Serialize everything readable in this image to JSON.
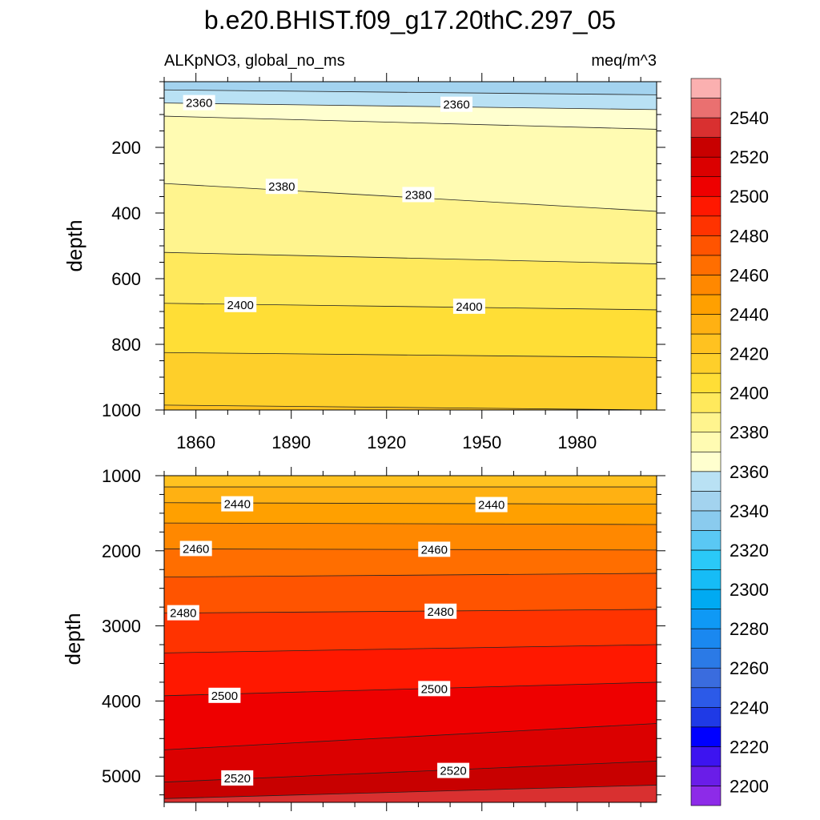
{
  "chart_data": {
    "type": "heatmap",
    "title": "b.e20.BHIST.f09_g17.20thC.297_05",
    "variable_label": "ALKpNO3, global_no_ms",
    "units_label": "meq/m^3",
    "ylabel": "depth",
    "x_range": [
      1850,
      2005
    ],
    "x_ticks": [
      1860,
      1890,
      1920,
      1950,
      1980
    ],
    "x_tick_labels": [
      "1860",
      "1890",
      "1920",
      "1950",
      "1980"
    ],
    "colorbar": {
      "levels": [
        2200,
        2210,
        2220,
        2230,
        2240,
        2250,
        2260,
        2270,
        2280,
        2290,
        2300,
        2310,
        2320,
        2330,
        2340,
        2350,
        2360,
        2370,
        2380,
        2390,
        2400,
        2410,
        2420,
        2430,
        2440,
        2450,
        2460,
        2470,
        2480,
        2490,
        2500,
        2510,
        2520,
        2530,
        2540,
        2550
      ],
      "label_values": [
        "2200",
        "2220",
        "2240",
        "2260",
        "2280",
        "2300",
        "2320",
        "2340",
        "2360",
        "2380",
        "2400",
        "2420",
        "2440",
        "2460",
        "2480",
        "2500",
        "2520",
        "2540"
      ],
      "colors": [
        "#8d2be8",
        "#6a1de8",
        "#3d14f0",
        "#0000ff",
        "#1f3ae6",
        "#2c5ae8",
        "#3a6cde",
        "#2b7ae6",
        "#1a88f0",
        "#0f99f5",
        "#00aaf2",
        "#16bcf6",
        "#2ac9f8",
        "#5ac8f4",
        "#8acbee",
        "#a3d3ef",
        "#b9e1f4",
        "#ffffcf",
        "#fffbb2",
        "#fff48e",
        "#ffe95c",
        "#ffde36",
        "#fecf2a",
        "#ffc220",
        "#ffb112",
        "#ffa000",
        "#ff8800",
        "#ff6e00",
        "#ff5400",
        "#ff3300",
        "#ff1800",
        "#ee0000",
        "#db0000",
        "#c80000",
        "#d93030",
        "#ea7070",
        "#fbb0b0"
      ]
    },
    "panels": [
      {
        "name": "upper",
        "ylim": [
          0,
          1000
        ],
        "y_ticks": [
          200,
          400,
          600,
          800,
          1000
        ],
        "y_tick_labels": [
          "200",
          "400",
          "600",
          "800",
          "1000"
        ],
        "contours": [
          {
            "level": 2350,
            "depth_start": 25,
            "depth_end": 40
          },
          {
            "level": 2360,
            "depth_start": 65,
            "depth_end": 85
          },
          {
            "level": 2370,
            "depth_start": 105,
            "depth_end": 145
          },
          {
            "level": 2380,
            "depth_start": 310,
            "depth_end": 395
          },
          {
            "level": 2390,
            "depth_start": 520,
            "depth_end": 555
          },
          {
            "level": 2400,
            "depth_start": 675,
            "depth_end": 695
          },
          {
            "level": 2410,
            "depth_start": 825,
            "depth_end": 840
          },
          {
            "level": 2420,
            "depth_start": 985,
            "depth_end": 1000
          }
        ],
        "contour_labels": [
          {
            "text": "2360",
            "x": 1861,
            "depth": 65
          },
          {
            "text": "2360",
            "x": 1942,
            "depth": 70
          },
          {
            "text": "2380",
            "x": 1887,
            "depth": 320
          },
          {
            "text": "2380",
            "x": 1930,
            "depth": 345
          },
          {
            "text": "2400",
            "x": 1874,
            "depth": 680
          },
          {
            "text": "2400",
            "x": 1946,
            "depth": 685
          }
        ]
      },
      {
        "name": "lower",
        "ylim": [
          1000,
          5350
        ],
        "y_ticks": [
          1000,
          2000,
          3000,
          4000,
          5000
        ],
        "y_tick_labels": [
          "1000",
          "2000",
          "3000",
          "4000",
          "5000"
        ],
        "contours": [
          {
            "level": 2430,
            "depth_start": 1150,
            "depth_end": 1150
          },
          {
            "level": 2440,
            "depth_start": 1360,
            "depth_end": 1380
          },
          {
            "level": 2450,
            "depth_start": 1630,
            "depth_end": 1650
          },
          {
            "level": 2460,
            "depth_start": 1975,
            "depth_end": 1990
          },
          {
            "level": 2470,
            "depth_start": 2350,
            "depth_end": 2300
          },
          {
            "level": 2480,
            "depth_start": 2830,
            "depth_end": 2780
          },
          {
            "level": 2490,
            "depth_start": 3360,
            "depth_end": 3250
          },
          {
            "level": 2500,
            "depth_start": 3930,
            "depth_end": 3750
          },
          {
            "level": 2510,
            "depth_start": 4650,
            "depth_end": 4300
          },
          {
            "level": 2520,
            "depth_start": 5080,
            "depth_end": 4800
          },
          {
            "level": 2530,
            "depth_start": 5300,
            "depth_end": 5120
          }
        ],
        "contour_labels": [
          {
            "text": "2440",
            "x": 1873,
            "depth": 1380
          },
          {
            "text": "2440",
            "x": 1953,
            "depth": 1390
          },
          {
            "text": "2460",
            "x": 1860,
            "depth": 1975
          },
          {
            "text": "2460",
            "x": 1935,
            "depth": 1985
          },
          {
            "text": "2480",
            "x": 1856,
            "depth": 2830
          },
          {
            "text": "2480",
            "x": 1937,
            "depth": 2810
          },
          {
            "text": "2500",
            "x": 1869,
            "depth": 3930
          },
          {
            "text": "2500",
            "x": 1935,
            "depth": 3840
          },
          {
            "text": "2520",
            "x": 1873,
            "depth": 5030
          },
          {
            "text": "2520",
            "x": 1941,
            "depth": 4930
          }
        ]
      }
    ]
  }
}
